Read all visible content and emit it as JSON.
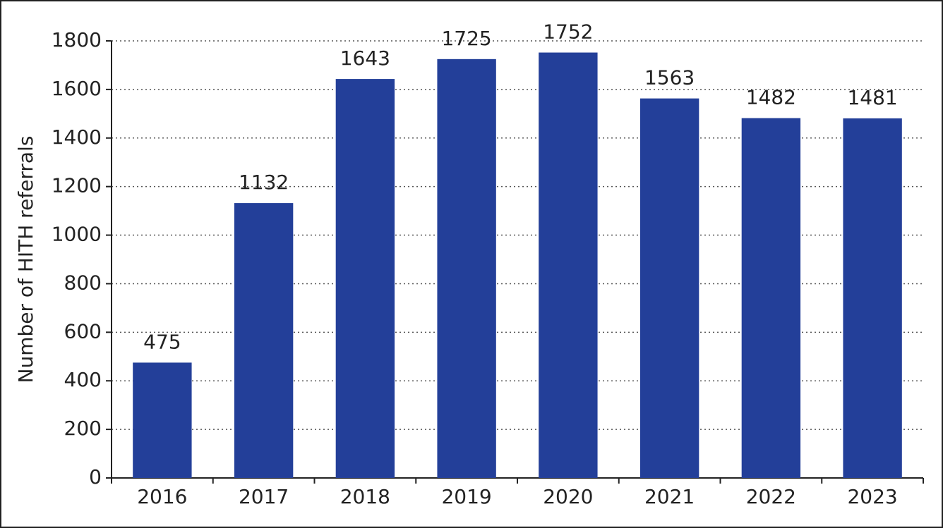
{
  "chart_data": {
    "type": "bar",
    "y_label": "Number of HITH referrals",
    "categories": [
      "2016",
      "2017",
      "2018",
      "2019",
      "2020",
      "2021",
      "2022",
      "2023"
    ],
    "values": [
      475,
      1132,
      1643,
      1725,
      1752,
      1563,
      1482,
      1481
    ],
    "color": "#233f99",
    "ylim": [
      0,
      1800
    ],
    "yticks": [
      0,
      200,
      400,
      600,
      800,
      1000,
      1200,
      1400,
      1600,
      1800
    ],
    "grid": true
  }
}
